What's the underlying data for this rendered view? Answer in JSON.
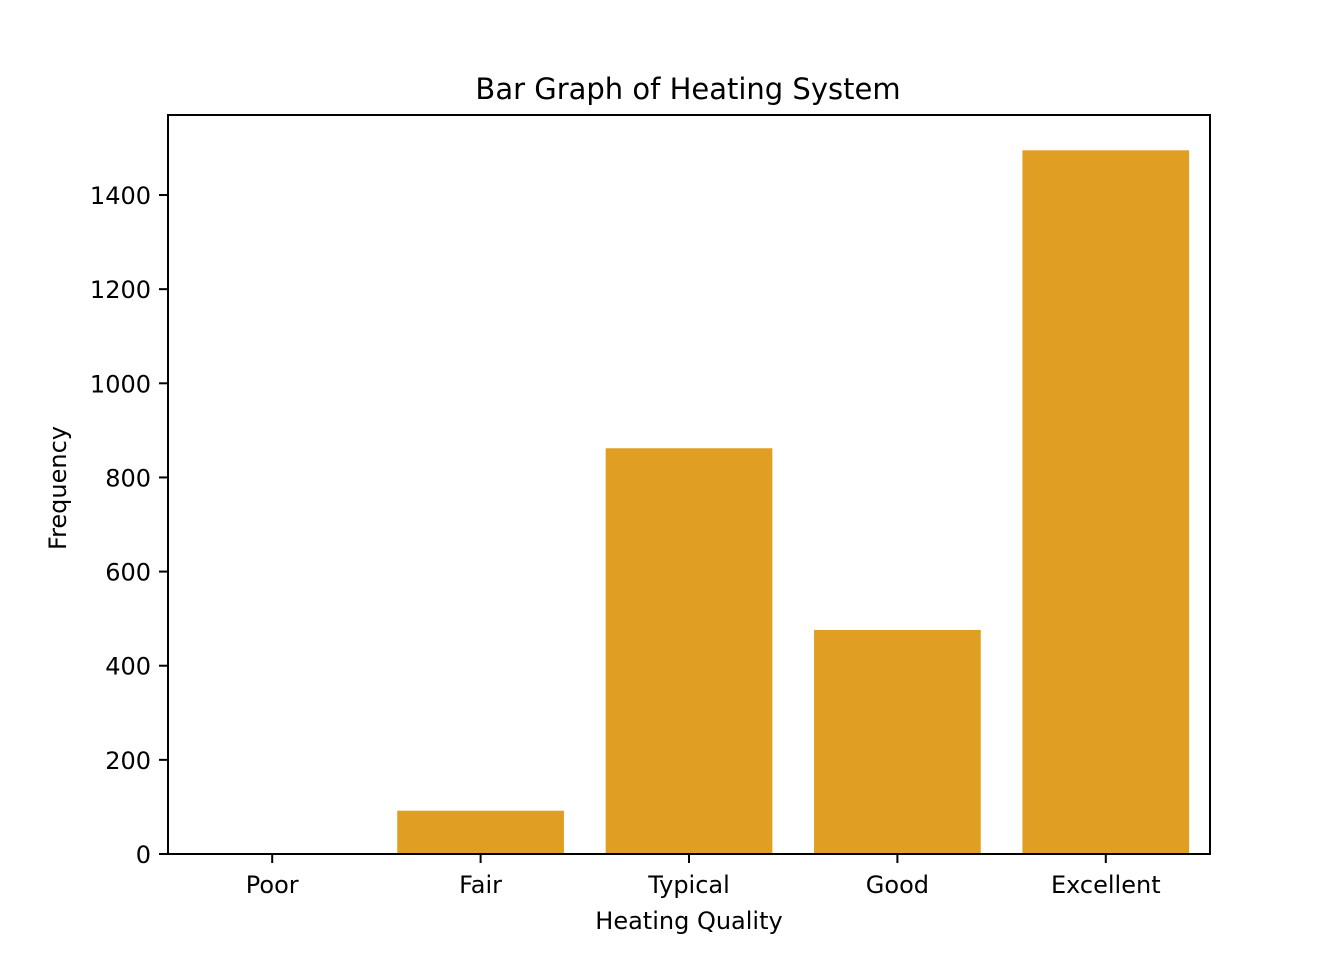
{
  "chart_data": {
    "type": "bar",
    "title": "Bar Graph of Heating System",
    "xlabel": "Heating Quality",
    "ylabel": "Frequency",
    "categories": [
      "Poor",
      "Fair",
      "Typical",
      "Good",
      "Excellent"
    ],
    "values": [
      1,
      92,
      862,
      476,
      1495
    ],
    "ylim": [
      0,
      1570
    ],
    "yticks": [
      0,
      200,
      400,
      600,
      800,
      1000,
      1200,
      1400
    ],
    "grid": false,
    "bar_color": "#e09e22"
  }
}
